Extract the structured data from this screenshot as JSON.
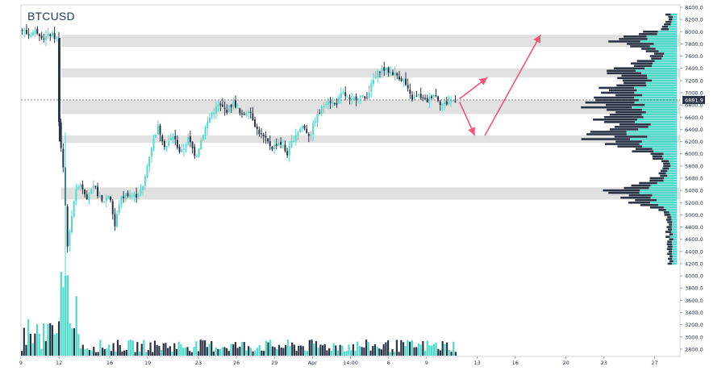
{
  "symbol": "BTCUSD",
  "colors": {
    "up": "#4fd9c9",
    "down": "#2b3446",
    "band": "#dcdcdc",
    "arrow": "#f2557a",
    "axis_text": "#2b3446",
    "price_badge": "#2b3446",
    "grid": "#eef1f4"
  },
  "chart_data": {
    "type": "candlestick",
    "title": "BTCUSD",
    "y_ticks": [
      2800.0,
      3000.0,
      3200.0,
      3400.0,
      3600.0,
      3800.0,
      4000.0,
      4200.0,
      4400.0,
      4600.0,
      4800.0,
      5000.0,
      5200.0,
      5400.0,
      5600.0,
      5800.0,
      6000.0,
      6200.0,
      6400.0,
      6600.0,
      6800.0,
      7000.0,
      7200.0,
      7400.0,
      7600.0,
      7800.0,
      8000.0,
      8200.0,
      8400.0
    ],
    "y_tick_labels": [
      "2800.0",
      "3000.0",
      "3200.0",
      "3400.0",
      "3600.0",
      "3800.0",
      "4000.0",
      "4200.0",
      "4400.0",
      "4600.0",
      "4800.0",
      "5000.0",
      "5200.0",
      "5400.0",
      "5600.0",
      "5800.0",
      "6000.0",
      "6200.0",
      "6400.0",
      "6600.0",
      "6800.0",
      "7000.0",
      "7200.0",
      "7400.0",
      "7600.0",
      "7800.0",
      "8000.0",
      "8200.0",
      "8400.0"
    ],
    "ylim": [
      2680,
      8440
    ],
    "x_ticks": [
      {
        "label": "9",
        "day": 0
      },
      {
        "label": "12",
        "day": 3
      },
      {
        "label": "16",
        "day": 7
      },
      {
        "label": "19",
        "day": 10
      },
      {
        "label": "23",
        "day": 14
      },
      {
        "label": "26",
        "day": 17
      },
      {
        "label": "29",
        "day": 20
      },
      {
        "label": "Apr",
        "day": 23
      },
      {
        "label": "14:00",
        "day": 26
      },
      {
        "label": "6",
        "day": 29
      },
      {
        "label": "9",
        "day": 32
      },
      {
        "label": "13",
        "day": 36
      },
      {
        "label": "16",
        "day": 39
      },
      {
        "label": "20",
        "day": 43
      },
      {
        "label": "23",
        "day": 46
      },
      {
        "label": "27",
        "day": 50
      }
    ],
    "xlim_days": [
      0,
      52
    ],
    "current_price": 6881.9,
    "current_price_label": "6881.9",
    "price_path": [
      [
        0.0,
        8050
      ],
      [
        0.6,
        7950
      ],
      [
        1.2,
        8020
      ],
      [
        1.8,
        7900
      ],
      [
        2.4,
        7960
      ],
      [
        2.9,
        7870
      ],
      [
        3.0,
        6350
      ],
      [
        3.3,
        5900
      ],
      [
        3.7,
        4400
      ],
      [
        4.1,
        5200
      ],
      [
        4.6,
        5550
      ],
      [
        5.2,
        5300
      ],
      [
        5.8,
        5450
      ],
      [
        6.4,
        5200
      ],
      [
        7.0,
        5350
      ],
      [
        7.4,
        4800
      ],
      [
        7.8,
        5250
      ],
      [
        8.4,
        5350
      ],
      [
        9.0,
        5300
      ],
      [
        9.6,
        5420
      ],
      [
        10.2,
        6050
      ],
      [
        10.8,
        6450
      ],
      [
        11.4,
        6100
      ],
      [
        12.0,
        6300
      ],
      [
        12.6,
        6000
      ],
      [
        13.2,
        6250
      ],
      [
        13.8,
        5950
      ],
      [
        14.4,
        6350
      ],
      [
        15.0,
        6650
      ],
      [
        15.6,
        6800
      ],
      [
        16.2,
        6700
      ],
      [
        16.8,
        6850
      ],
      [
        17.4,
        6600
      ],
      [
        18.0,
        6750
      ],
      [
        18.6,
        6400
      ],
      [
        19.2,
        6250
      ],
      [
        19.8,
        6100
      ],
      [
        20.4,
        6200
      ],
      [
        21.0,
        6000
      ],
      [
        21.6,
        6300
      ],
      [
        22.2,
        6450
      ],
      [
        22.8,
        6300
      ],
      [
        23.2,
        6550
      ],
      [
        23.6,
        6700
      ],
      [
        24.2,
        6900
      ],
      [
        24.8,
        6800
      ],
      [
        25.4,
        7000
      ],
      [
        26.0,
        6850
      ],
      [
        26.6,
        6950
      ],
      [
        27.2,
        6900
      ],
      [
        27.8,
        7200
      ],
      [
        28.4,
        7400
      ],
      [
        29.0,
        7350
      ],
      [
        29.6,
        7300
      ],
      [
        30.2,
        7200
      ],
      [
        30.8,
        6900
      ],
      [
        31.4,
        6950
      ],
      [
        32.0,
        6850
      ],
      [
        32.6,
        7000
      ],
      [
        33.2,
        6800
      ],
      [
        33.8,
        6850
      ],
      [
        34.4,
        6900
      ]
    ],
    "volume_bars": 200,
    "zones": [
      {
        "low": 7750,
        "high": 7950
      },
      {
        "low": 7250,
        "high": 7400
      },
      {
        "low": 6650,
        "high": 6880
      },
      {
        "low": 6180,
        "high": 6300
      },
      {
        "low": 5250,
        "high": 5450
      }
    ],
    "arrows": [
      {
        "from": [
          34.6,
          6900
        ],
        "to": [
          36.8,
          7250
        ]
      },
      {
        "from": [
          34.6,
          6850
        ],
        "to": [
          35.8,
          6300
        ]
      },
      {
        "from": [
          36.6,
          6300
        ],
        "to": [
          41.0,
          7950
        ]
      }
    ]
  }
}
